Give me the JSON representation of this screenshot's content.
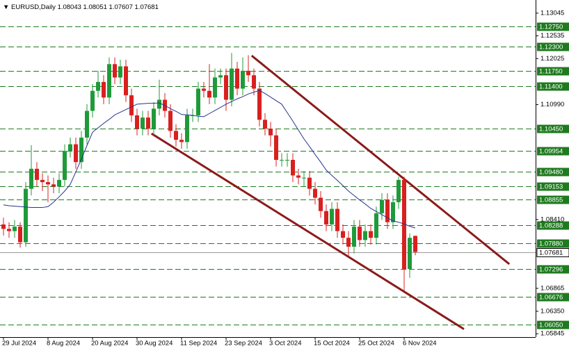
{
  "chart_data": {
    "type": "candlestick",
    "symbol": "EURUSD,Daily",
    "categories": [
      "29 Jul 2024",
      null,
      null,
      null,
      null,
      null,
      null,
      null,
      "8 Aug 2024",
      null,
      null,
      null,
      null,
      null,
      null,
      null,
      "20 Aug 2024",
      null,
      null,
      null,
      null,
      null,
      null,
      null,
      "30 Aug 2024",
      null,
      null,
      null,
      null,
      null,
      null,
      null,
      "11 Sep 2024",
      null,
      null,
      null,
      null,
      null,
      null,
      null,
      "23 Sep 2024",
      null,
      null,
      null,
      null,
      null,
      null,
      null,
      "3 Oct 2024",
      null,
      null,
      null,
      null,
      null,
      null,
      null,
      "15 Oct 2024",
      null,
      null,
      null,
      null,
      null,
      null,
      null,
      "25 Oct 2024",
      null,
      null,
      null,
      null,
      null,
      null,
      null,
      "6 Nov 2024",
      null,
      null
    ],
    "open": [
      1.083,
      1.082,
      1.0815,
      1.0825,
      1.079,
      1.091,
      1.0955,
      1.093,
      1.0925,
      1.092,
      1.0915,
      1.093,
      1.0995,
      1.101,
      1.097,
      1.1025,
      1.1085,
      1.113,
      1.115,
      1.1115,
      1.119,
      1.116,
      1.1185,
      1.112,
      1.1075,
      1.1045,
      1.107,
      1.1045,
      1.109,
      1.111,
      1.1085,
      1.104,
      1.102,
      1.1015,
      1.1075,
      1.1075,
      1.1135,
      1.113,
      1.1115,
      1.116,
      1.1165,
      1.111,
      1.118,
      1.1135,
      1.1175,
      1.1165,
      1.1135,
      1.1065,
      1.1045,
      1.103,
      1.0975,
      1.0975,
      1.0975,
      1.094,
      1.0935,
      1.0935,
      1.091,
      1.089,
      1.086,
      1.083,
      1.0865,
      1.0815,
      1.08,
      1.078,
      1.0825,
      1.0795,
      1.0815,
      1.08,
      1.0855,
      1.0885,
      1.0835,
      1.088,
      1.093,
      1.073,
      1.08043
    ],
    "high": [
      1.0845,
      1.0835,
      1.084,
      1.0835,
      1.0925,
      1.1008,
      1.097,
      1.0945,
      1.094,
      1.0935,
      1.0945,
      1.101,
      1.1025,
      1.1025,
      1.104,
      1.11,
      1.1145,
      1.1175,
      1.1165,
      1.1205,
      1.1205,
      1.12,
      1.12,
      1.1135,
      1.109,
      1.1085,
      1.1085,
      1.1105,
      1.1155,
      1.1125,
      1.11,
      1.1055,
      1.1035,
      1.109,
      1.109,
      1.115,
      1.115,
      1.119,
      1.118,
      1.118,
      1.118,
      1.1215,
      1.1195,
      1.1205,
      1.121,
      1.118,
      1.115,
      1.108,
      1.106,
      1.1045,
      1.099,
      1.099,
      1.099,
      1.0955,
      1.095,
      1.095,
      1.0925,
      1.0905,
      1.0875,
      1.088,
      1.088,
      1.083,
      1.0815,
      1.084,
      1.084,
      1.083,
      1.083,
      1.087,
      1.09,
      1.09,
      1.0895,
      1.0937,
      1.0937,
      1.081,
      1.08051
    ],
    "low": [
      1.0805,
      1.08,
      1.08,
      1.0778,
      1.078,
      1.0895,
      1.0915,
      1.0905,
      1.088,
      1.09,
      1.09,
      1.0915,
      1.098,
      1.0955,
      1.0955,
      1.101,
      1.107,
      1.1115,
      1.11,
      1.11,
      1.1145,
      1.1145,
      1.1105,
      1.106,
      1.103,
      1.103,
      1.103,
      1.103,
      1.1075,
      1.107,
      1.1025,
      1.1005,
      1.1,
      1.1,
      1.106,
      1.106,
      1.1115,
      1.11,
      1.11,
      1.1145,
      1.1085,
      1.1095,
      1.112,
      1.112,
      1.115,
      1.112,
      1.105,
      1.103,
      1.1005,
      1.096,
      1.096,
      1.096,
      1.0925,
      1.092,
      1.0915,
      1.0895,
      1.0875,
      1.0845,
      1.0815,
      1.0815,
      1.08,
      1.0785,
      1.076,
      1.0765,
      1.078,
      1.078,
      1.0785,
      1.0785,
      1.084,
      1.082,
      1.082,
      1.0865,
      1.0682,
      1.071,
      1.07607
    ],
    "close": [
      1.082,
      1.0815,
      1.0825,
      1.079,
      1.091,
      1.0955,
      1.093,
      1.0925,
      1.092,
      1.0915,
      1.093,
      1.0995,
      1.101,
      1.097,
      1.1025,
      1.1085,
      1.113,
      1.115,
      1.1115,
      1.119,
      1.116,
      1.1185,
      1.112,
      1.1075,
      1.1045,
      1.107,
      1.1045,
      1.109,
      1.111,
      1.1085,
      1.104,
      1.102,
      1.1015,
      1.1075,
      1.1075,
      1.1135,
      1.113,
      1.1115,
      1.116,
      1.1165,
      1.111,
      1.118,
      1.1135,
      1.1175,
      1.1165,
      1.1135,
      1.1065,
      1.1045,
      1.103,
      1.0975,
      1.0975,
      1.0975,
      1.094,
      1.0935,
      1.0935,
      1.091,
      1.089,
      1.086,
      1.083,
      1.0865,
      1.0815,
      1.08,
      1.078,
      1.0825,
      1.0795,
      1.0815,
      1.08,
      1.0855,
      1.0885,
      1.0835,
      1.088,
      1.093,
      1.073,
      1.08,
      1.07681
    ],
    "ma": [
      1.0874,
      1.0872,
      1.0871,
      1.087,
      1.0869,
      1.0868,
      1.0868,
      1.0868,
      1.087,
      1.088,
      1.0892,
      1.0905,
      1.092,
      1.0948,
      1.0977,
      1.1007,
      1.1037,
      1.1047,
      1.1057,
      1.1066,
      1.1076,
      1.1082,
      1.1088,
      1.1094,
      1.11,
      1.1101,
      1.1102,
      1.1102,
      1.1103,
      1.1097,
      1.109,
      1.1084,
      1.1077,
      1.1076,
      1.1075,
      1.1073,
      1.1072,
      1.1079,
      1.1086,
      1.1093,
      1.11,
      1.1106,
      1.1112,
      1.1117,
      1.1123,
      1.1127,
      1.1131,
      1.1124,
      1.1116,
      1.1108,
      1.11,
      1.1081,
      1.1062,
      1.1042,
      1.1022,
      1.1005,
      1.0987,
      1.097,
      1.0952,
      1.094,
      1.0929,
      1.0917,
      1.0905,
      1.0895,
      1.0885,
      1.0876,
      1.0866,
      1.0859,
      1.0852,
      1.0845,
      1.0838,
      1.0835,
      1.0831,
      1.0826,
      1.0822
    ],
    "up_color": "#1f9a3a",
    "down_color": "#d8201f",
    "ma_color": "#27348b",
    "ylim": [
      1.0577,
      1.1334
    ],
    "yticks": [
      1.13045,
      1.12535,
      1.12025,
      {
        "value": 1.1099,
        "label": "1.10990"
      },
      {
        "value": 1.0841,
        "label": "1.08410"
      },
      1.06865,
      {
        "value": 1.0635,
        "label": "1.06350"
      },
      1.05845
    ],
    "levels": [
      {
        "value": 1.1275,
        "label": "1.12750"
      },
      {
        "value": 1.123,
        "label": "1.12300"
      },
      {
        "value": 1.1175,
        "label": "1.11750"
      },
      {
        "value": 1.114,
        "label": "1.11400"
      },
      {
        "value": 1.1045,
        "label": "1.10450"
      },
      1.09954,
      {
        "value": 1.0948,
        "label": "1.09480"
      },
      1.09153,
      1.08855,
      1.08288,
      {
        "value": 1.0788,
        "label": "1.07880"
      },
      1.07296,
      1.06676,
      {
        "value": 1.0605,
        "label": "1.06050"
      }
    ],
    "level_color": "#1f7a1f",
    "trendlines": [
      {
        "x": [
          44.6,
          90.9
        ],
        "y": [
          1.1209,
          1.0741
        ]
      },
      {
        "x": [
          26.6,
          82.75
        ],
        "y": [
          1.1034,
          1.0595
        ]
      }
    ],
    "trendline_color": "#8b1a1a"
  }
}
